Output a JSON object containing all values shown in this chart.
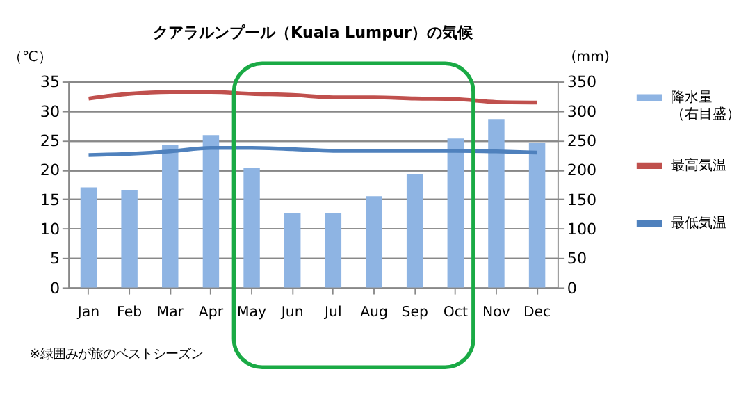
{
  "chart_data": {
    "type": "bar",
    "title": "クアラルンプール（Kuala Lumpur）の気候",
    "ylabel": "（℃）",
    "y2label": "(mm)",
    "categories": [
      "Jan",
      "Feb",
      "Mar",
      "Apr",
      "May",
      "Jun",
      "Jul",
      "Aug",
      "Sep",
      "Oct",
      "Nov",
      "Dec"
    ],
    "series": [
      {
        "name": "降水量（右目盛）",
        "axis": "y2",
        "color": "#8eb4e3",
        "values": [
          170,
          166,
          242,
          259,
          203,
          126,
          126,
          155,
          193,
          253,
          286,
          246
        ]
      },
      {
        "name": "最高気温",
        "type": "line",
        "color": "#c0504d",
        "values": [
          32.1,
          32.9,
          33.2,
          33.2,
          32.9,
          32.7,
          32.3,
          32.3,
          32.1,
          32.0,
          31.5,
          31.4
        ]
      },
      {
        "name": "最低気温",
        "type": "line",
        "color": "#4f81bd",
        "values": [
          22.5,
          22.7,
          23.1,
          23.7,
          23.7,
          23.5,
          23.2,
          23.2,
          23.2,
          23.2,
          23.1,
          22.9
        ]
      }
    ],
    "ylim": [
      0,
      35
    ],
    "yticks": [
      0,
      5,
      10,
      15,
      20,
      25,
      30,
      35
    ],
    "y2lim": [
      0,
      350
    ],
    "y2ticks": [
      0,
      50,
      100,
      150,
      200,
      250,
      300,
      350
    ],
    "grid": "y",
    "legend": "right",
    "annotations": [
      "※緑囲みが旅のベストシーズン"
    ]
  }
}
